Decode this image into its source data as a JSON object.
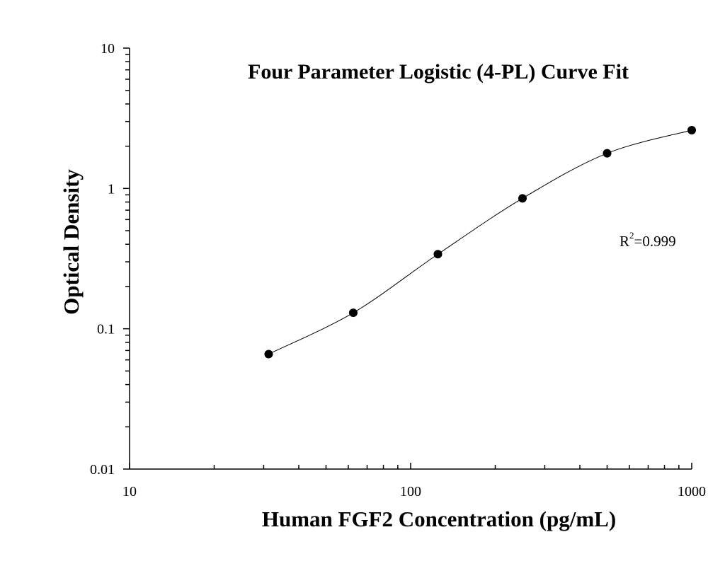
{
  "chart_data": {
    "type": "scatter",
    "title": "Four Parameter Logistic (4-PL) Curve Fit",
    "xlabel": "Human FGF2 Concentration (pg/mL)",
    "ylabel": "Optical Density",
    "xscale": "log",
    "yscale": "log",
    "xlim": [
      10,
      1000
    ],
    "ylim": [
      0.01,
      10
    ],
    "x_ticks": [
      10,
      100,
      1000
    ],
    "x_tick_labels": [
      "10",
      "100",
      "1000"
    ],
    "y_ticks": [
      0.01,
      0.1,
      1,
      10
    ],
    "y_tick_labels": [
      "0.01",
      "0.1",
      "1",
      "10"
    ],
    "grid": false,
    "legend": "none",
    "series": [
      {
        "x": [
          31.25,
          62.5,
          125,
          250,
          500,
          1000
        ],
        "y": [
          0.066,
          0.13,
          0.34,
          0.85,
          1.78,
          2.6
        ],
        "marker": "filled-circle",
        "fit_curve": "4-PL"
      }
    ],
    "annotation": {
      "text_base": "R",
      "text_sup": "2",
      "text_rest": "=0.999"
    },
    "colors": {
      "marker": "#000000",
      "curve": "#000000",
      "axis": "#000000"
    }
  }
}
